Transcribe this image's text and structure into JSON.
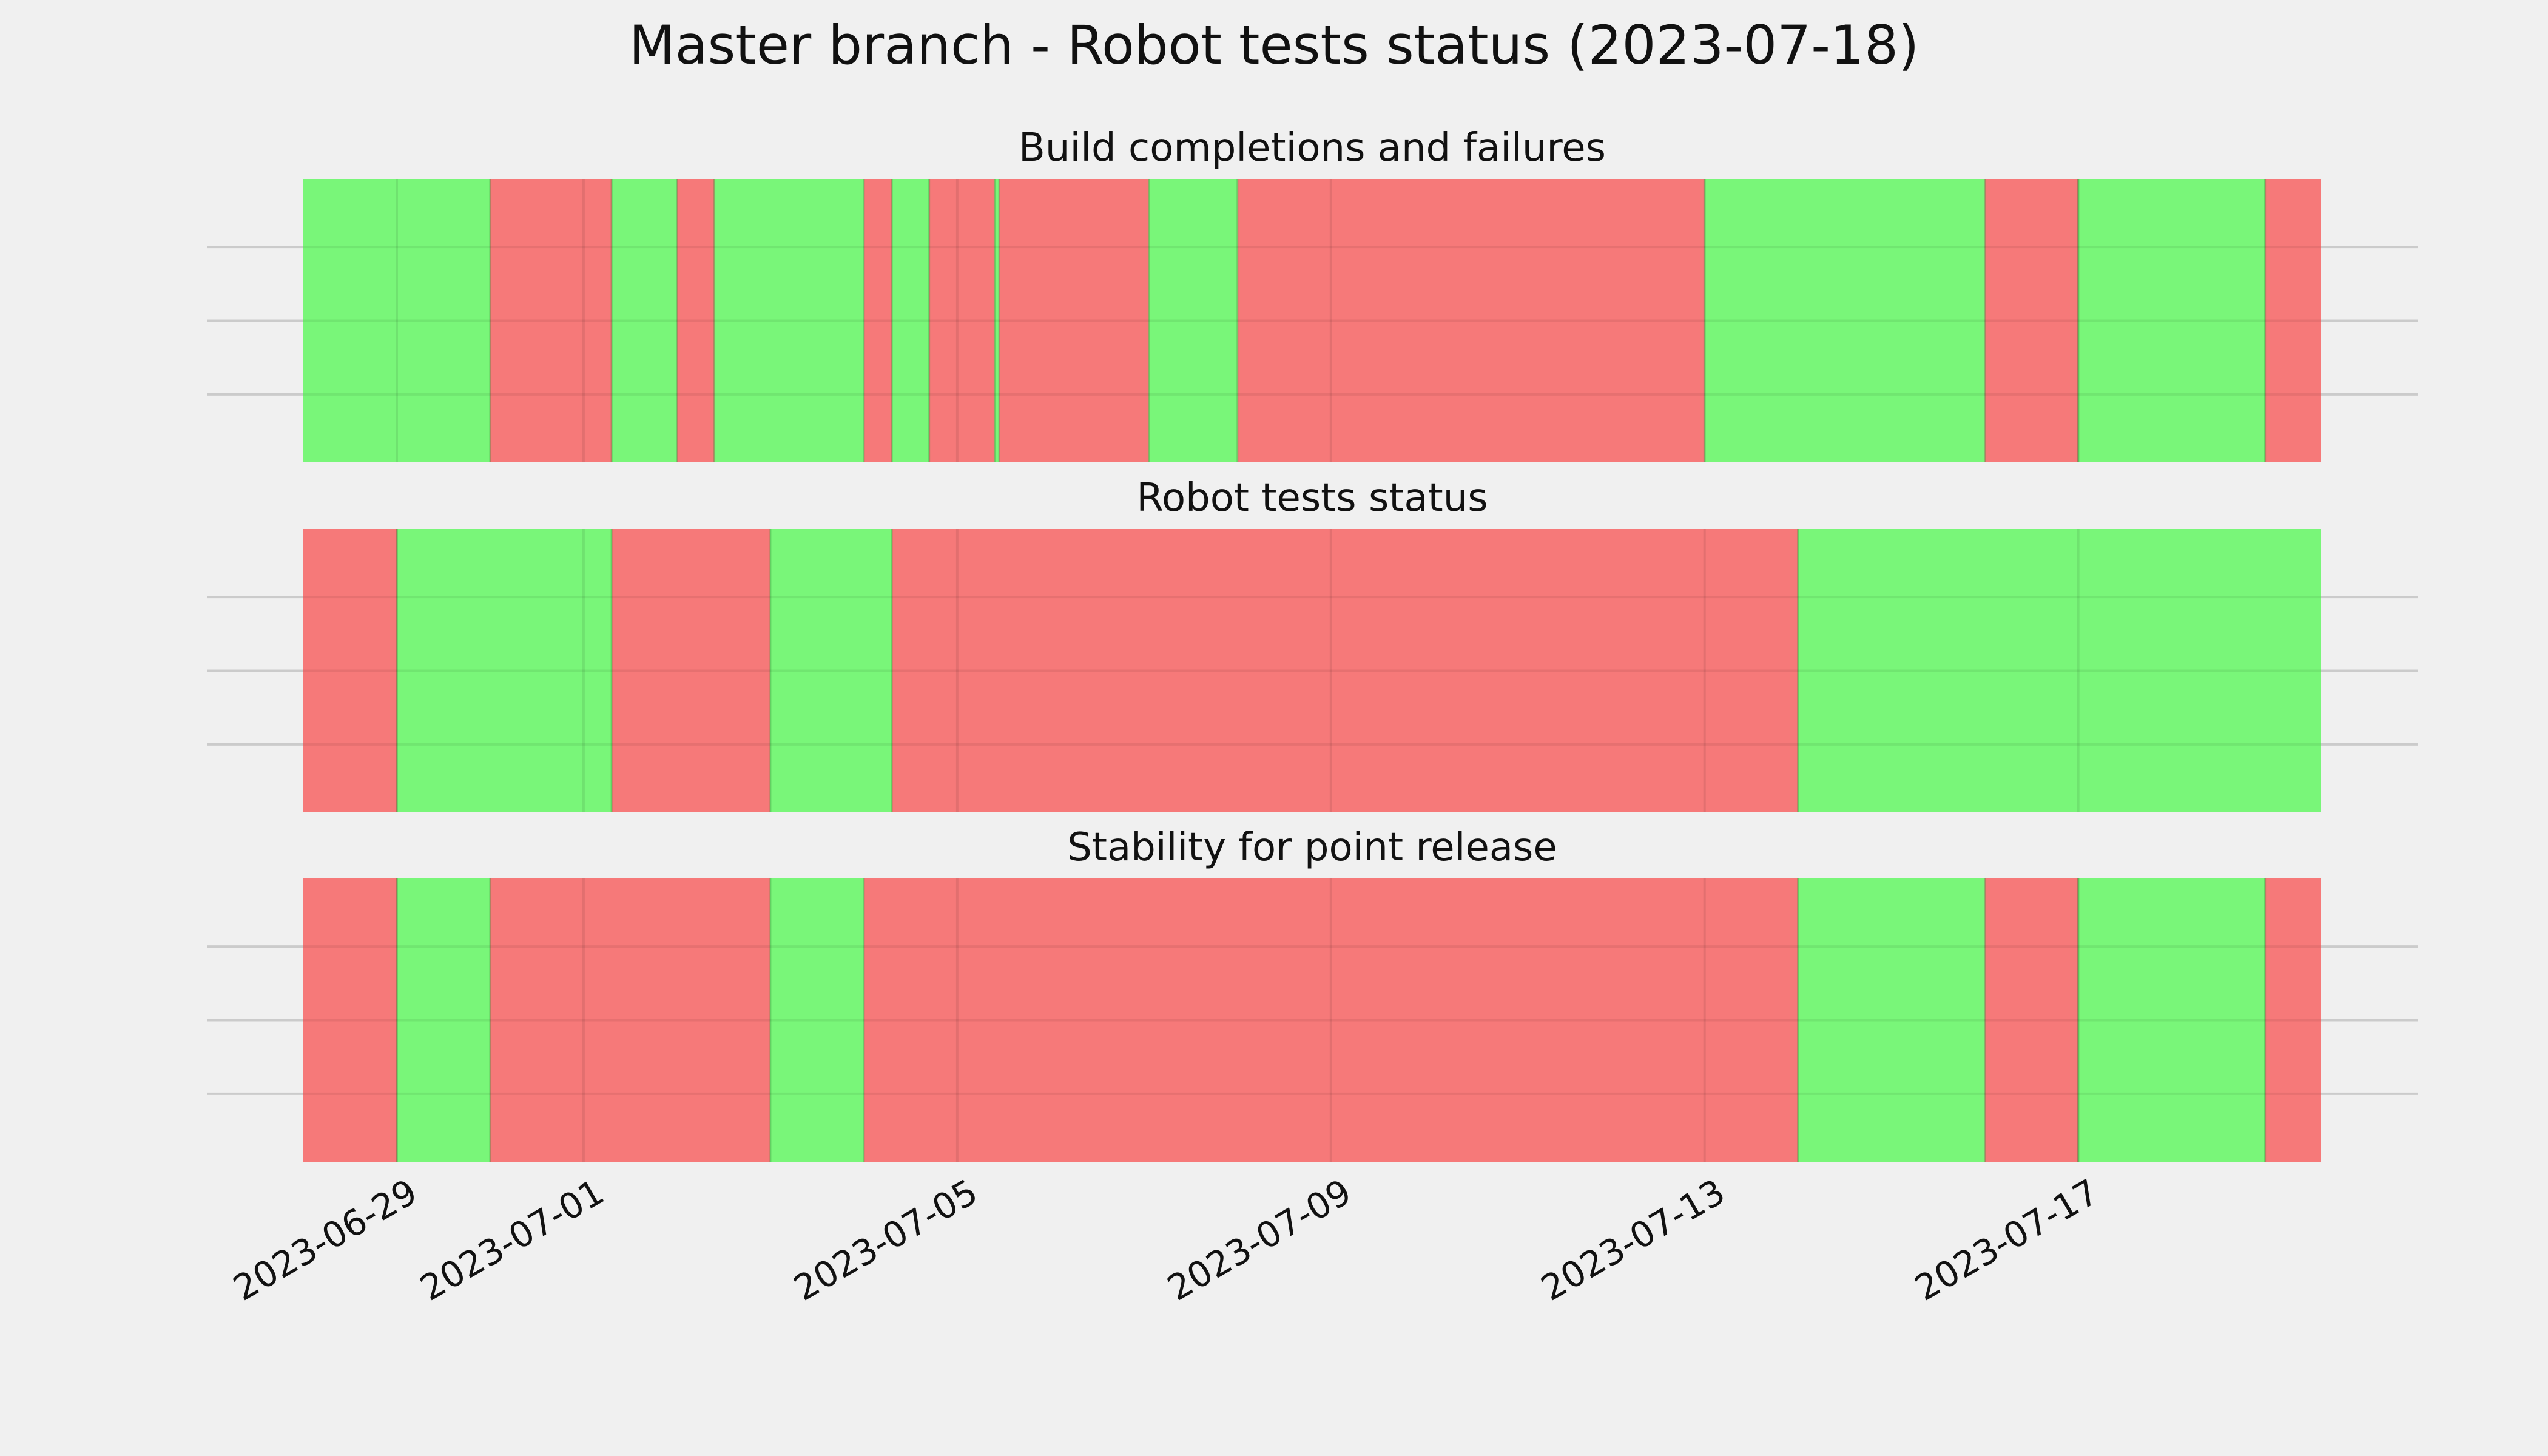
{
  "page": {
    "title": "Master branch - Robot tests status (2023-07-18)"
  },
  "colors": {
    "background": "#f0f0f0",
    "success": "#75f675",
    "failure": "#f67575",
    "grid": "#cbcbcb",
    "text": "#111111"
  },
  "chart_data": {
    "type": "timeline",
    "xlim": [
      "2023-06-28",
      "2023-07-18 14:24"
    ],
    "x_ticks": [
      "2023-06-29",
      "2023-07-01",
      "2023-07-05",
      "2023-07-09",
      "2023-07-13",
      "2023-07-17"
    ],
    "x_grid": [
      "2023-06-29",
      "2023-07-01",
      "2023-07-05",
      "2023-07-09",
      "2023-07-13",
      "2023-07-17"
    ],
    "panels": [
      {
        "title": "Build completions and failures",
        "segments": [
          {
            "start": "2023-06-28 00:00",
            "end": "2023-06-30 00:00",
            "status": "success"
          },
          {
            "start": "2023-06-30 00:00",
            "end": "2023-07-01 07:12",
            "status": "failure"
          },
          {
            "start": "2023-07-01 07:12",
            "end": "2023-07-02 00:00",
            "status": "success"
          },
          {
            "start": "2023-07-02 00:00",
            "end": "2023-07-02 09:36",
            "status": "failure"
          },
          {
            "start": "2023-07-02 09:36",
            "end": "2023-07-04 00:00",
            "status": "success"
          },
          {
            "start": "2023-07-04 00:00",
            "end": "2023-07-04 07:12",
            "status": "failure"
          },
          {
            "start": "2023-07-04 07:12",
            "end": "2023-07-04 16:48",
            "status": "success"
          },
          {
            "start": "2023-07-04 16:48",
            "end": "2023-07-05 09:36",
            "status": "failure"
          },
          {
            "start": "2023-07-05 09:36",
            "end": "2023-07-05 10:48",
            "status": "success"
          },
          {
            "start": "2023-07-05 10:48",
            "end": "2023-07-07 01:12",
            "status": "failure"
          },
          {
            "start": "2023-07-07 01:12",
            "end": "2023-07-08 00:00",
            "status": "success"
          },
          {
            "start": "2023-07-08 00:00",
            "end": "2023-07-13 00:00",
            "status": "failure"
          },
          {
            "start": "2023-07-13 00:00",
            "end": "2023-07-16 00:00",
            "status": "success"
          },
          {
            "start": "2023-07-16 00:00",
            "end": "2023-07-17 00:00",
            "status": "failure"
          },
          {
            "start": "2023-07-17 00:00",
            "end": "2023-07-19 00:00",
            "status": "success"
          },
          {
            "start": "2023-07-19 00:00",
            "end": "2023-07-19 14:24",
            "status": "failure"
          }
        ]
      },
      {
        "title": "Robot tests status",
        "segments": [
          {
            "start": "2023-06-28 00:00",
            "end": "2023-06-29 00:00",
            "status": "failure"
          },
          {
            "start": "2023-06-29 00:00",
            "end": "2023-07-01 07:12",
            "status": "success"
          },
          {
            "start": "2023-07-01 07:12",
            "end": "2023-07-03 00:00",
            "status": "failure"
          },
          {
            "start": "2023-07-03 00:00",
            "end": "2023-07-04 07:12",
            "status": "success"
          },
          {
            "start": "2023-07-04 07:12",
            "end": "2023-07-14 00:00",
            "status": "failure"
          },
          {
            "start": "2023-07-14 00:00",
            "end": "2023-07-19 14:24",
            "status": "success"
          }
        ]
      },
      {
        "title": "Stability for point release",
        "segments": [
          {
            "start": "2023-06-28 00:00",
            "end": "2023-06-29 00:00",
            "status": "failure"
          },
          {
            "start": "2023-06-29 00:00",
            "end": "2023-06-30 00:00",
            "status": "success"
          },
          {
            "start": "2023-06-30 00:00",
            "end": "2023-07-03 00:00",
            "status": "failure"
          },
          {
            "start": "2023-07-03 00:00",
            "end": "2023-07-04 00:00",
            "status": "success"
          },
          {
            "start": "2023-07-04 00:00",
            "end": "2023-07-14 00:00",
            "status": "failure"
          },
          {
            "start": "2023-07-14 00:00",
            "end": "2023-07-16 00:00",
            "status": "success"
          },
          {
            "start": "2023-07-16 00:00",
            "end": "2023-07-17 00:00",
            "status": "failure"
          },
          {
            "start": "2023-07-17 00:00",
            "end": "2023-07-19 00:00",
            "status": "success"
          },
          {
            "start": "2023-07-19 00:00",
            "end": "2023-07-19 14:24",
            "status": "failure"
          }
        ]
      }
    ]
  }
}
